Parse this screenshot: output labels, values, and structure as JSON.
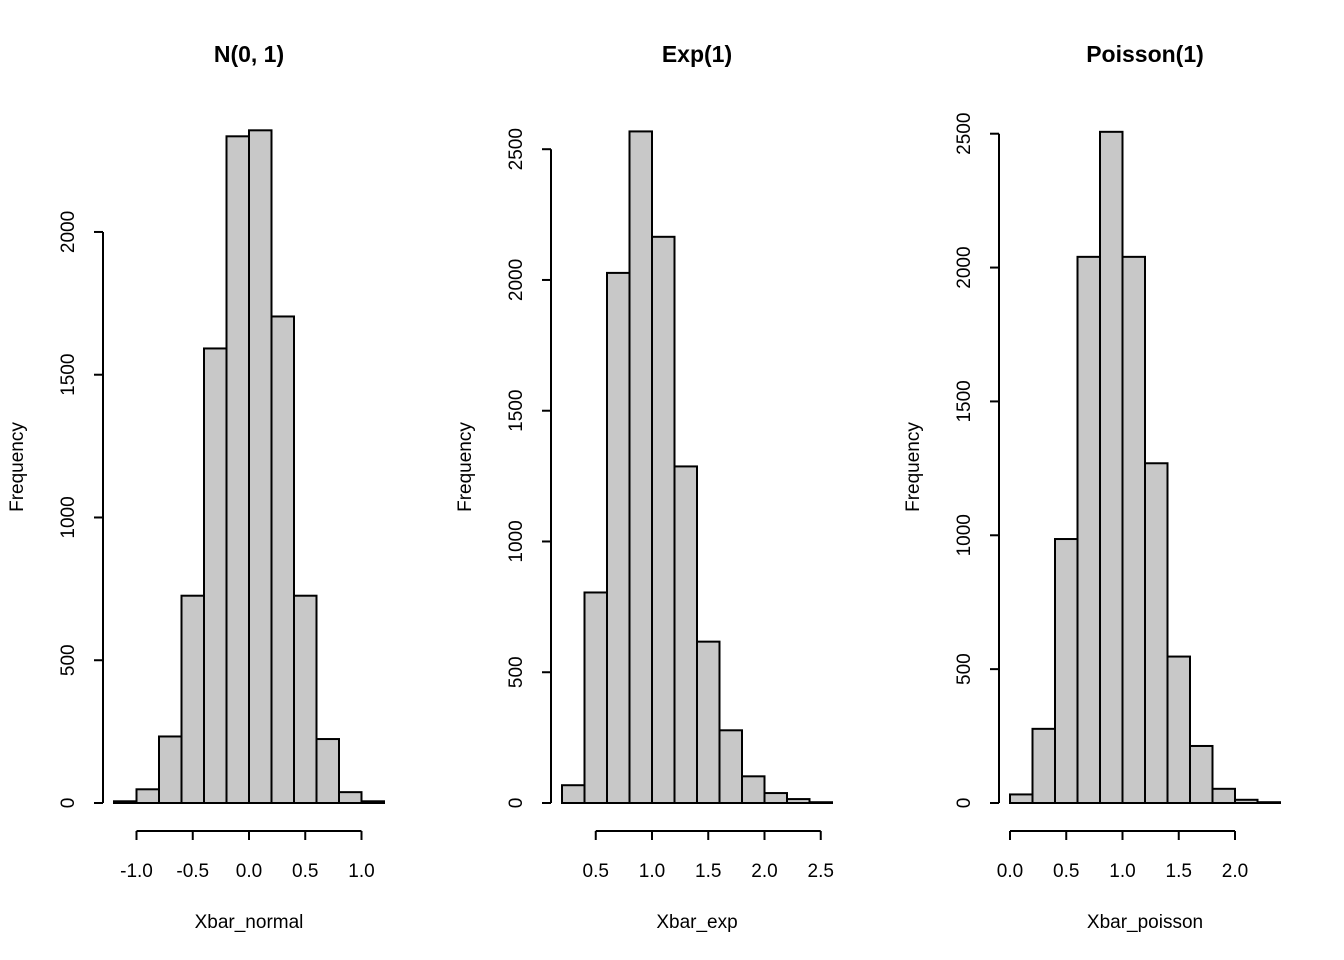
{
  "chart_data": [
    {
      "type": "bar",
      "title": "N(0, 1)",
      "xlabel": "Xbar_normal",
      "ylabel": "Frequency",
      "bin_edges": [
        -1.2,
        -1.0,
        -0.8,
        -0.6,
        -0.4,
        -0.2,
        0.0,
        0.2,
        0.4,
        0.6,
        0.8,
        1.0,
        1.2
      ],
      "values": [
        6,
        48,
        233,
        726,
        1592,
        2335,
        2356,
        1704,
        726,
        224,
        38,
        6
      ],
      "x_ticks": [
        -1.0,
        -0.5,
        0.0,
        0.5,
        1.0
      ],
      "x_tick_labels": [
        "-1.0",
        "-0.5",
        "0.0",
        "0.5",
        "1.0"
      ],
      "y_ticks": [
        0,
        500,
        1000,
        1500,
        2000
      ],
      "y_tick_labels": [
        "0",
        "500",
        "1000",
        "1500",
        "2000"
      ],
      "ylim": [
        0,
        2400
      ]
    },
    {
      "type": "bar",
      "title": "Exp(1)",
      "xlabel": "Xbar_exp",
      "ylabel": "Frequency",
      "bin_edges": [
        0.2,
        0.4,
        0.6,
        0.8,
        1.0,
        1.2,
        1.4,
        1.6,
        1.8,
        2.0,
        2.2,
        2.4,
        2.6
      ],
      "values": [
        68,
        805,
        2027,
        2568,
        2165,
        1287,
        617,
        278,
        102,
        38,
        15,
        3
      ],
      "x_ticks": [
        0.5,
        1.0,
        1.5,
        2.0,
        2.5
      ],
      "x_tick_labels": [
        "0.5",
        "1.0",
        "1.5",
        "2.0",
        "2.5"
      ],
      "y_ticks": [
        0,
        500,
        1000,
        1500,
        2000,
        2500
      ],
      "y_tick_labels": [
        "0",
        "500",
        "1000",
        "1500",
        "2000",
        "2500"
      ],
      "ylim": [
        0,
        2600
      ]
    },
    {
      "type": "bar",
      "title": "Poisson(1)",
      "xlabel": "Xbar_poisson",
      "ylabel": "Frequency",
      "bin_edges": [
        0.0,
        0.2,
        0.4,
        0.6,
        0.8,
        1.0,
        1.2,
        1.4,
        1.6,
        1.8,
        2.0,
        2.2,
        2.4
      ],
      "values": [
        32,
        277,
        986,
        2040,
        2507,
        2040,
        1269,
        547,
        213,
        53,
        12,
        3
      ],
      "x_ticks": [
        0.0,
        0.5,
        1.0,
        1.5,
        2.0
      ],
      "x_tick_labels": [
        "0.0",
        "0.5",
        "1.0",
        "1.5",
        "2.0"
      ],
      "y_ticks": [
        0,
        500,
        1000,
        1500,
        2000,
        2500
      ],
      "y_tick_labels": [
        "0",
        "500",
        "1000",
        "1500",
        "2000",
        "2500"
      ],
      "ylim": [
        0,
        2600
      ]
    }
  ]
}
